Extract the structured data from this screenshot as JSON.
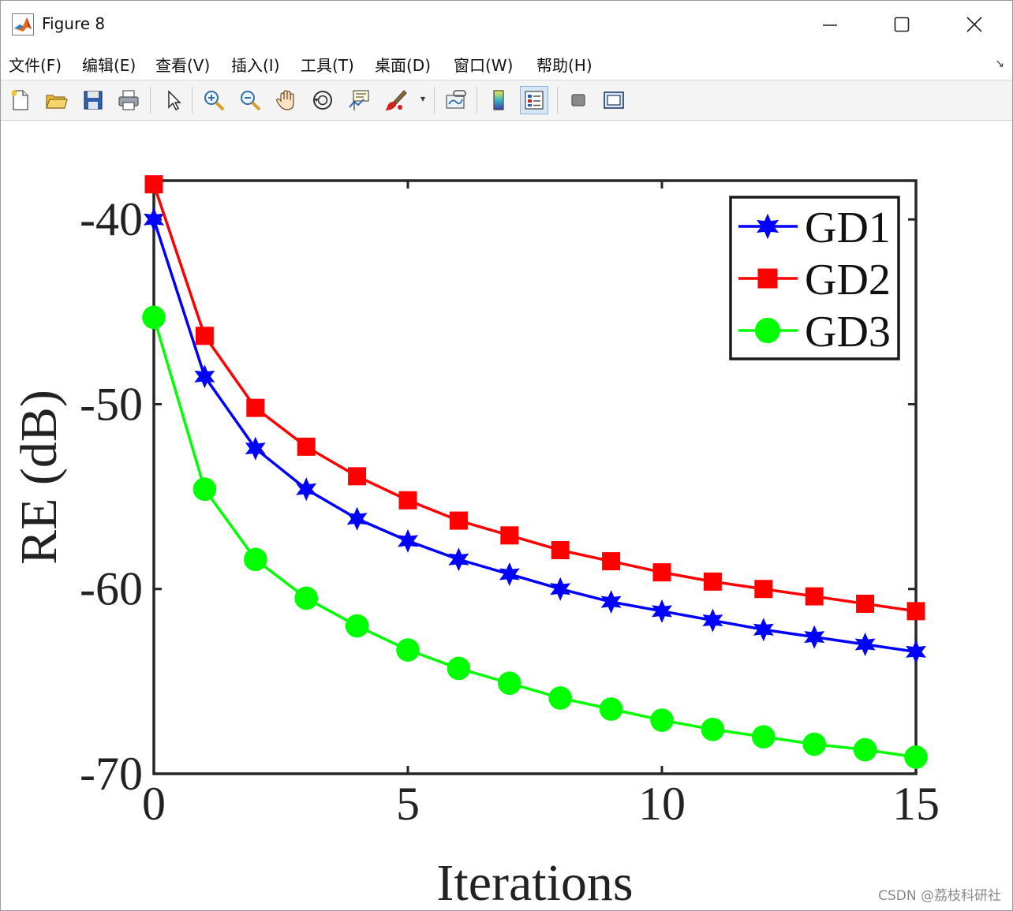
{
  "window": {
    "title": "Figure 8",
    "icon": "matlab-icon"
  },
  "menubar": {
    "items": [
      "文件(F)",
      "编辑(E)",
      "查看(V)",
      "插入(I)",
      "工具(T)",
      "桌面(D)",
      "窗口(W)",
      "帮助(H)"
    ]
  },
  "toolbar": {
    "buttons": [
      {
        "name": "new-figure-icon"
      },
      {
        "name": "open-file-icon"
      },
      {
        "name": "save-icon"
      },
      {
        "name": "print-icon"
      },
      {
        "name": "pointer-icon"
      },
      {
        "name": "zoom-in-icon"
      },
      {
        "name": "zoom-out-icon"
      },
      {
        "name": "pan-hand-icon"
      },
      {
        "name": "rotate-3d-icon"
      },
      {
        "name": "data-cursor-icon"
      },
      {
        "name": "brush-icon"
      },
      {
        "name": "link-plot-icon"
      },
      {
        "name": "colorbar-icon"
      },
      {
        "name": "legend-icon",
        "active": true
      },
      {
        "name": "hide-plot-tools-icon"
      },
      {
        "name": "show-plot-tools-icon"
      }
    ]
  },
  "watermark": "CSDN @荔枝科研社",
  "chart_data": {
    "type": "line",
    "title": "",
    "xlabel": "Iterations",
    "ylabel": "RE (dB)",
    "xlim": [
      0,
      15
    ],
    "ylim": [
      -70,
      -37.9
    ],
    "xticks": [
      "0",
      "5",
      "10",
      "15"
    ],
    "yticks": [
      "-40",
      "-50",
      "-60",
      "-70"
    ],
    "grid": false,
    "legend_position": "top-right",
    "x": [
      0,
      1,
      2,
      3,
      4,
      5,
      6,
      7,
      8,
      9,
      10,
      11,
      12,
      13,
      14,
      15
    ],
    "series": [
      {
        "name": "GD1",
        "color": "#0000ff",
        "marker": "hexagram",
        "values": [
          -40.0,
          -48.5,
          -52.4,
          -54.6,
          -56.2,
          -57.4,
          -58.4,
          -59.2,
          -60.0,
          -60.7,
          -61.2,
          -61.7,
          -62.2,
          -62.6,
          -63.0,
          -63.4
        ]
      },
      {
        "name": "GD2",
        "color": "#ff0000",
        "marker": "square",
        "values": [
          -38.1,
          -46.3,
          -50.2,
          -52.3,
          -53.9,
          -55.2,
          -56.3,
          -57.1,
          -57.9,
          -58.5,
          -59.1,
          -59.6,
          -60.0,
          -60.4,
          -60.8,
          -61.2
        ]
      },
      {
        "name": "GD3",
        "color": "#00ff00",
        "marker": "circle",
        "values": [
          -45.3,
          -54.6,
          -58.4,
          -60.5,
          -62.0,
          -63.3,
          -64.3,
          -65.1,
          -65.9,
          -66.5,
          -67.1,
          -67.6,
          -68.0,
          -68.4,
          -68.7,
          -69.1
        ]
      }
    ]
  }
}
